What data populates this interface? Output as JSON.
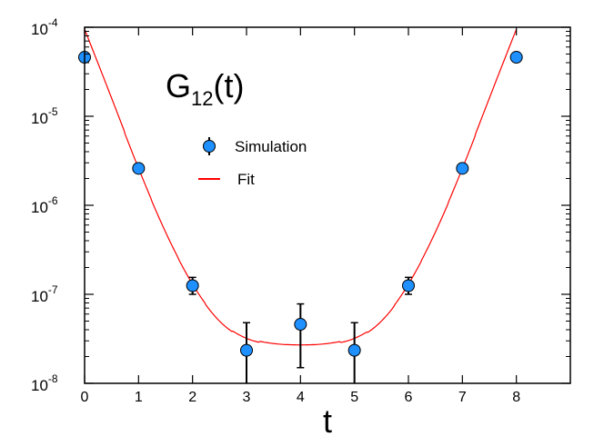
{
  "chart_data": {
    "type": "scatter",
    "title": "G12(t)",
    "title_main": "G",
    "title_sub": "12",
    "title_tail": "(t)",
    "xlabel": "t",
    "ylabel": "",
    "xlim": [
      0,
      9
    ],
    "ylim": [
      1e-08,
      0.0001
    ],
    "yscale": "log",
    "grid": false,
    "legend_position": "center-left",
    "x_ticks": [
      0,
      1,
      2,
      3,
      4,
      5,
      6,
      7,
      8
    ],
    "x_tick_labels": [
      "0",
      "1",
      "2",
      "3",
      "4",
      "5",
      "6",
      "7",
      "8"
    ],
    "y_ticks": [
      {
        "value": 0.0001,
        "base": "10",
        "exp": "-4"
      },
      {
        "value": 1e-05,
        "base": "10",
        "exp": "-5"
      },
      {
        "value": 1e-06,
        "base": "10",
        "exp": "-6"
      },
      {
        "value": 1e-07,
        "base": "10",
        "exp": "-7"
      },
      {
        "value": 1e-08,
        "base": "10",
        "exp": "-8"
      }
    ],
    "series": [
      {
        "name": "Simulation",
        "kind": "points-with-errorbars",
        "color": "#1e90ff",
        "edge_color": "#000000",
        "x": [
          0,
          1,
          2,
          3,
          4,
          5,
          6,
          7,
          8
        ],
        "y": [
          4.6e-05,
          2.6e-06,
          1.25e-07,
          2.35e-08,
          4.6e-08,
          2.35e-08,
          1.25e-07,
          2.6e-06,
          4.6e-05
        ],
        "y_err_low": [
          null,
          null,
          1e-07,
          1e-08,
          1.5e-08,
          1e-08,
          1e-07,
          null,
          null
        ],
        "y_err_high": [
          null,
          null,
          1.55e-07,
          4.8e-08,
          7.8e-08,
          4.8e-08,
          1.55e-07,
          null,
          null
        ]
      },
      {
        "name": "Fit",
        "kind": "line",
        "color": "#ff0000",
        "x": [
          0,
          0.5,
          1,
          1.5,
          2,
          2.5,
          3,
          3.5,
          4,
          4.5,
          5,
          5.5,
          6,
          6.5,
          7,
          7.5,
          8
        ],
        "y": [
          9.5e-05,
          1.6e-05,
          2.6e-06,
          5e-07,
          1.3e-07,
          5e-08,
          3.2e-08,
          2.8e-08,
          2.7e-08,
          2.8e-08,
          3.2e-08,
          5e-08,
          1.3e-07,
          5e-07,
          2.6e-06,
          1.6e-05,
          9.5e-05
        ]
      }
    ]
  }
}
